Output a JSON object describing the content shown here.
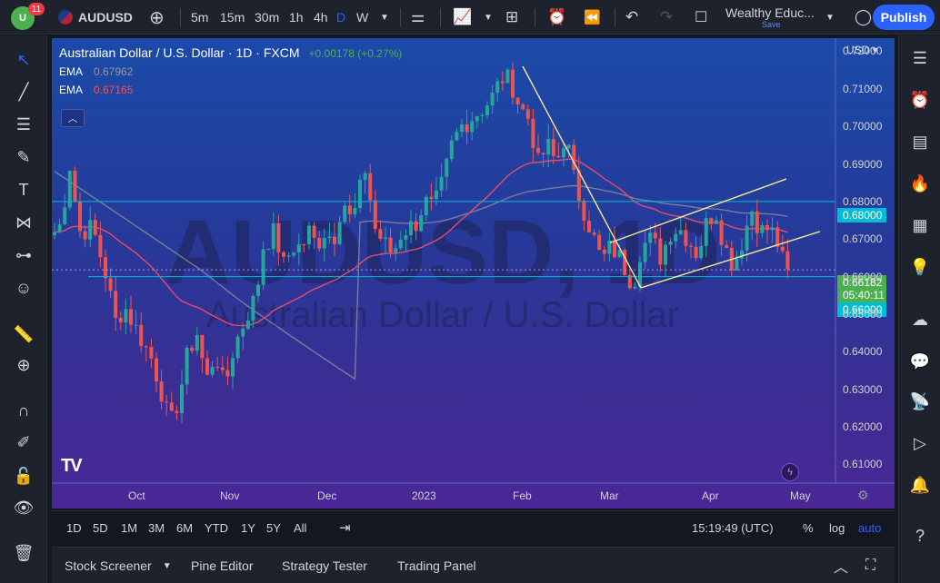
{
  "app": {
    "notifications": "11",
    "symbol": "AUDUSD",
    "logo_text": "U"
  },
  "toolbar": {
    "intervals": [
      "5m",
      "15m",
      "30m",
      "1h",
      "4h",
      "D",
      "W"
    ],
    "active_interval": "D",
    "layout_name": "Wealthy Educ...",
    "save_label": "Save",
    "publish_label": "Publish"
  },
  "legend": {
    "title": "Australian Dollar / U.S. Dollar · 1D · FXCM",
    "change": "+0.00178 (+0.27%)",
    "ema1_label": "EMA",
    "ema1_value": "0.67962",
    "ema2_label": "EMA",
    "ema2_value": "0.67165"
  },
  "watermark": {
    "symbol": "AUDUSD, 1D",
    "description": "Australian Dollar / U.S. Dollar"
  },
  "price_axis": {
    "currency": "USD",
    "ticks": [
      "0.72000",
      "0.71000",
      "0.70000",
      "0.69000",
      "0.68000",
      "0.67000",
      "0.66000",
      "0.65000",
      "0.64000",
      "0.63000",
      "0.62000",
      "0.61000"
    ],
    "tick_values": [
      0.72,
      0.71,
      0.7,
      0.69,
      0.68,
      0.67,
      0.66,
      0.65,
      0.64,
      0.63,
      0.62,
      0.61
    ],
    "hline_high_label": "0.68000",
    "hline_low_label": "0.66000",
    "last_price": "0.66182",
    "countdown": "05:40:11"
  },
  "time_axis": {
    "labels": [
      "Oct",
      "Nov",
      "Dec",
      "2023",
      "Feb",
      "Mar",
      "Apr",
      "May"
    ]
  },
  "range_bar": {
    "ranges": [
      "1D",
      "5D",
      "1M",
      "3M",
      "6M",
      "YTD",
      "1Y",
      "5Y",
      "All"
    ],
    "clock": "15:19:49 (UTC)",
    "percent": "%",
    "log": "log",
    "auto": "auto"
  },
  "bottom_panel": {
    "tabs": [
      "Stock Screener",
      "Pine Editor",
      "Strategy Tester",
      "Trading Panel"
    ]
  },
  "colors": {
    "up": "#26a69a",
    "down": "#ef5350",
    "ema_fast": "#e84b6a",
    "ema_slow": "#8a8f9c",
    "accent": "#2962ff",
    "level_line": "#00bcd4",
    "trendline": "#f3e99b"
  },
  "chart_data": {
    "type": "candlestick",
    "title": "Australian Dollar / U.S. Dollar · 1D · FXCM",
    "ylim": [
      0.605,
      0.7235
    ],
    "horizontal_levels": [
      0.68,
      0.66
    ],
    "last_price": 0.66182,
    "ema_series": [
      {
        "name": "EMA",
        "last": 0.67962
      },
      {
        "name": "EMA",
        "last": 0.67165
      }
    ]
  }
}
